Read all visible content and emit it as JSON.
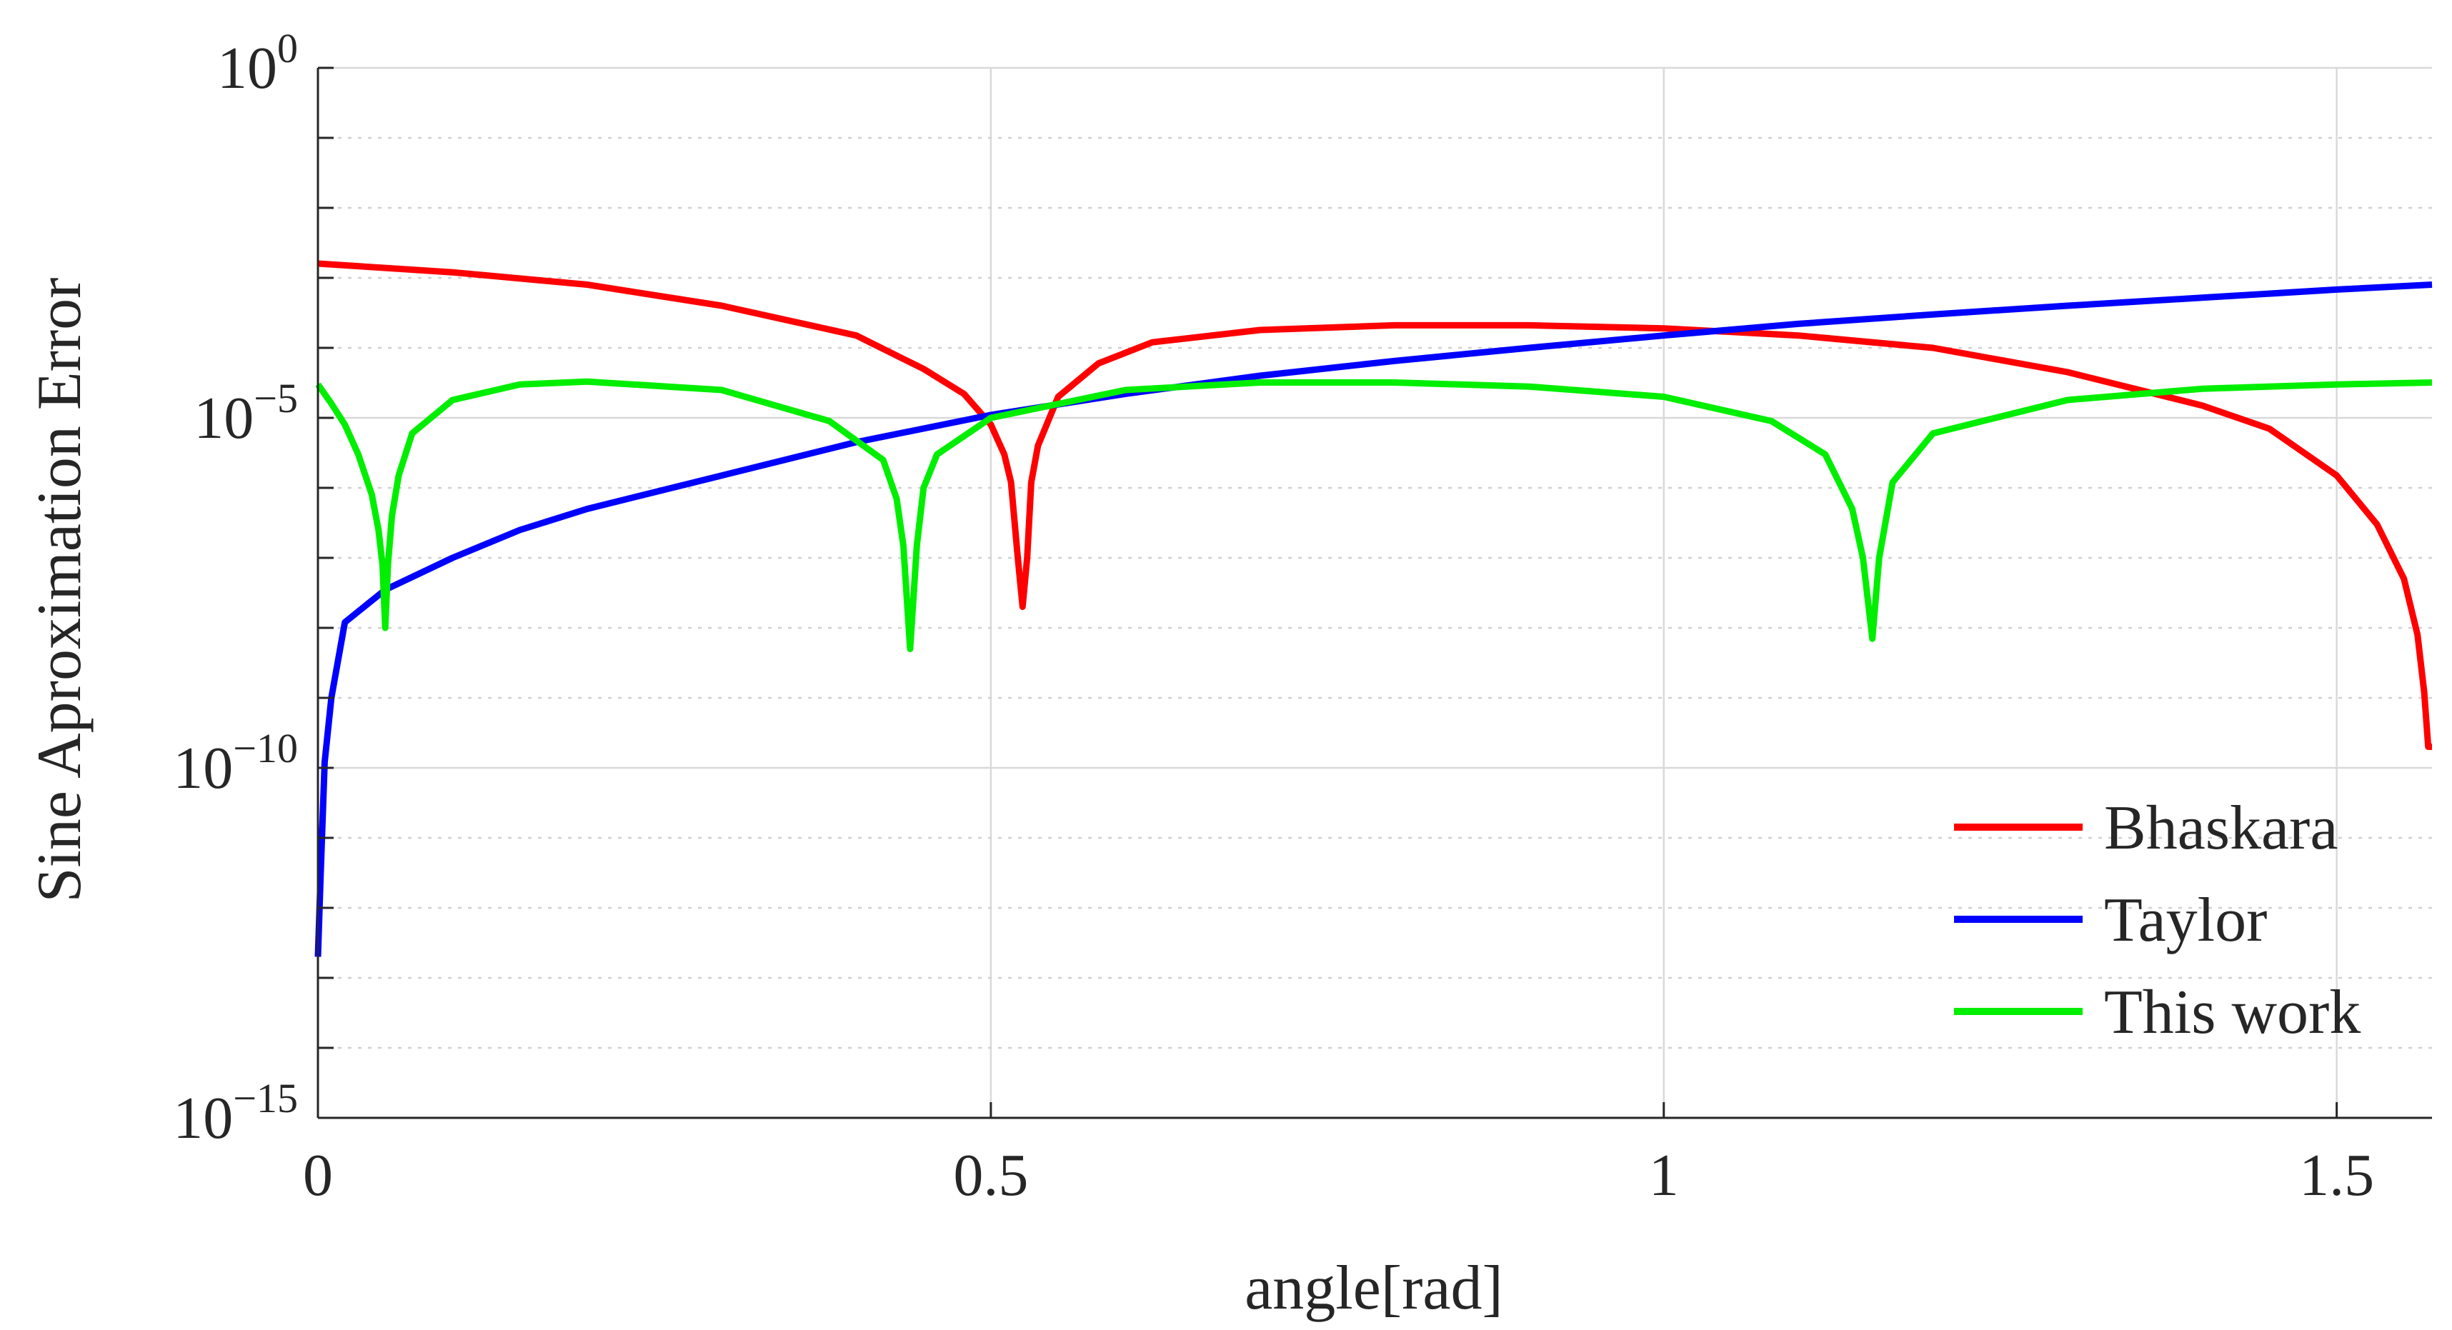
{
  "chart_data": {
    "type": "line",
    "title": "",
    "xlabel": "angle[rad]",
    "ylabel": "Sine Aproximation Error",
    "xlim": [
      0,
      1.5708
    ],
    "ylim": [
      1e-15,
      1
    ],
    "yscale": "log",
    "grid": true,
    "x_ticks": [
      {
        "value": 0,
        "label": "0"
      },
      {
        "value": 0.5,
        "label": "0.5"
      },
      {
        "value": 1,
        "label": "1"
      },
      {
        "value": 1.5,
        "label": "1.5"
      }
    ],
    "y_ticks": [
      {
        "value": 1,
        "base": "10",
        "exp": "0"
      },
      {
        "value": 1e-05,
        "base": "10",
        "exp": "−5"
      },
      {
        "value": 1e-10,
        "base": "10",
        "exp": "−10"
      },
      {
        "value": 1e-15,
        "base": "10",
        "exp": "−15"
      }
    ],
    "legend": {
      "placement": "bottom-right",
      "entries": [
        "Bhaskara",
        "Taylor",
        "This work"
      ]
    },
    "series": [
      {
        "name": "Bhaskara",
        "color": "#ff0000",
        "x": [
          0,
          0.1,
          0.2,
          0.3,
          0.4,
          0.45,
          0.48,
          0.5,
          0.51,
          0.515,
          0.52,
          0.5236,
          0.527,
          0.53,
          0.535,
          0.55,
          0.58,
          0.62,
          0.7,
          0.8,
          0.9,
          1.0,
          1.1,
          1.2,
          1.3,
          1.4,
          1.45,
          1.5,
          1.53,
          1.55,
          1.56,
          1.565,
          1.568,
          1.5708
        ],
        "y": [
          0.0016,
          0.0012,
          0.0008,
          0.0004,
          0.00015,
          5e-05,
          2.2e-05,
          8e-06,
          3e-06,
          1.2e-06,
          1e-07,
          2e-08,
          1e-07,
          1.2e-06,
          4e-06,
          2e-05,
          6e-05,
          0.00012,
          0.00018,
          0.00021,
          0.00021,
          0.00019,
          0.00015,
          0.0001,
          4.5e-05,
          1.5e-05,
          7e-06,
          1.5e-06,
          3e-07,
          5e-08,
          8e-09,
          1.2e-09,
          2e-10,
          2e-10
        ]
      },
      {
        "name": "Taylor",
        "color": "#0000ff",
        "x": [
          0,
          0.002,
          0.005,
          0.01,
          0.02,
          0.05,
          0.1,
          0.15,
          0.2,
          0.3,
          0.4,
          0.5,
          0.6,
          0.7,
          0.8,
          0.9,
          1.0,
          1.1,
          1.2,
          1.3,
          1.4,
          1.5,
          1.5708
        ],
        "y": [
          2e-13,
          3e-12,
          1.2e-10,
          1e-09,
          1.2e-08,
          3.5e-08,
          1e-07,
          2.5e-07,
          5e-07,
          1.5e-06,
          4.5e-06,
          1.1e-05,
          2.2e-05,
          4e-05,
          6.5e-05,
          0.0001,
          0.00015,
          0.00022,
          0.0003,
          0.0004,
          0.00052,
          0.00068,
          0.0008
        ]
      },
      {
        "name": "This work",
        "color": "#00ee00",
        "x": [
          0,
          0.01,
          0.02,
          0.03,
          0.04,
          0.045,
          0.048,
          0.05,
          0.052,
          0.055,
          0.06,
          0.07,
          0.1,
          0.15,
          0.2,
          0.3,
          0.38,
          0.42,
          0.43,
          0.435,
          0.44,
          0.445,
          0.45,
          0.46,
          0.5,
          0.6,
          0.7,
          0.8,
          0.9,
          1.0,
          1.08,
          1.12,
          1.14,
          1.148,
          1.155,
          1.16,
          1.17,
          1.2,
          1.3,
          1.4,
          1.5,
          1.5708
        ],
        "y": [
          3e-05,
          1.6e-05,
          8e-06,
          3e-06,
          8e-07,
          2.5e-07,
          8e-08,
          1e-08,
          8e-08,
          4e-07,
          1.5e-06,
          6e-06,
          1.8e-05,
          3e-05,
          3.3e-05,
          2.5e-05,
          9e-06,
          2.5e-06,
          7e-07,
          1.5e-07,
          5e-09,
          1.5e-07,
          1e-06,
          3e-06,
          1e-05,
          2.5e-05,
          3.2e-05,
          3.2e-05,
          2.8e-05,
          2e-05,
          9e-06,
          3e-06,
          5e-07,
          1e-07,
          7e-09,
          1e-07,
          1.2e-06,
          6e-06,
          1.8e-05,
          2.6e-05,
          3e-05,
          3.2e-05
        ]
      }
    ]
  }
}
